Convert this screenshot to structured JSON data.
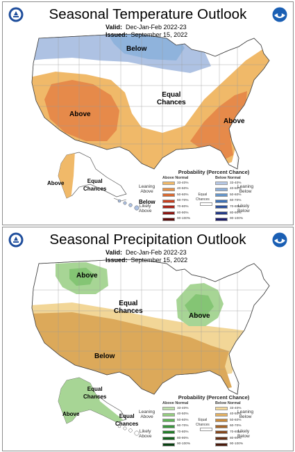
{
  "temperature": {
    "title": "Seasonal Temperature Outlook",
    "valid_label": "Valid:",
    "valid": "Dec-Jan-Feb 2022-23",
    "issued_label": "Issued:",
    "issued": "September 15, 2022",
    "labels": {
      "below": "Below",
      "equal_chances": "Equal\nChances",
      "above_west": "Above",
      "above_east": "Above",
      "above_ak": "Above",
      "equal_chances_ak": "Equal\nChances",
      "below_hi": "Below"
    },
    "legend": {
      "title": "Probability (Percent Chance)",
      "col_left": "Above Normal",
      "col_right": "Below Normal",
      "equal": "Equal\nChances",
      "leaning_left": "Leaning\nAbove",
      "leaning_right": "Leaning\nBelow",
      "likely_left": "Likely\nAbove",
      "likely_right": "Likely\nBelow",
      "ranges": [
        "33-40%",
        "40-50%",
        "50-60%",
        "60-70%",
        "70-80%",
        "80-90%",
        "90-100%"
      ],
      "left_colors": [
        "#f0b969",
        "#e5914a",
        "#d9672e",
        "#c6401f",
        "#a82318",
        "#8a1612",
        "#5e0a0a"
      ],
      "right_colors": [
        "#b6c8e6",
        "#8fb0da",
        "#6495c9",
        "#3f72b6",
        "#2c4f9a",
        "#243a85",
        "#1c1c6a"
      ]
    },
    "colors": {
      "above": "#e68a4a",
      "leaning_above": "#f0b969",
      "leaning_below": "#aec2e3",
      "below": "#8fb3dc"
    }
  },
  "precipitation": {
    "title": "Seasonal Precipitation Outlook",
    "valid_label": "Valid:",
    "valid": "Dec-Jan-Feb 2022-23",
    "issued_label": "Issued:",
    "issued": "September 15, 2022",
    "labels": {
      "above_nw": "Above",
      "equal_chances": "Equal\nChances",
      "above_ov": "Above",
      "below": "Below",
      "equal_chances_ak": "Equal\nChances",
      "above_ak": "Above",
      "equal_chances_hi": "Equal\nChances"
    },
    "legend": {
      "title": "Probability (Percent Chance)",
      "col_left": "Above Normal",
      "col_right": "Below Normal",
      "equal": "Equal\nChances",
      "leaning_left": "Leaning\nAbove",
      "leaning_right": "Leaning\nBelow",
      "likely_left": "Likely\nAbove",
      "likely_right": "Likely\nBelow",
      "ranges": [
        "33-40%",
        "40-50%",
        "50-60%",
        "60-70%",
        "70-80%",
        "80-90%",
        "90-100%"
      ],
      "left_colors": [
        "#bfe0ad",
        "#94cc7f",
        "#5fb257",
        "#3a963d",
        "#237c2a",
        "#135f1c",
        "#084011"
      ],
      "right_colors": [
        "#f3d99d",
        "#e2b062",
        "#c98a3c",
        "#a6662a",
        "#84481e",
        "#652f13",
        "#48190a"
      ]
    },
    "colors": {
      "above": "#a7d595",
      "above_dark": "#84c574",
      "below": "#dca95a",
      "leaning_below": "#f2d697"
    }
  }
}
